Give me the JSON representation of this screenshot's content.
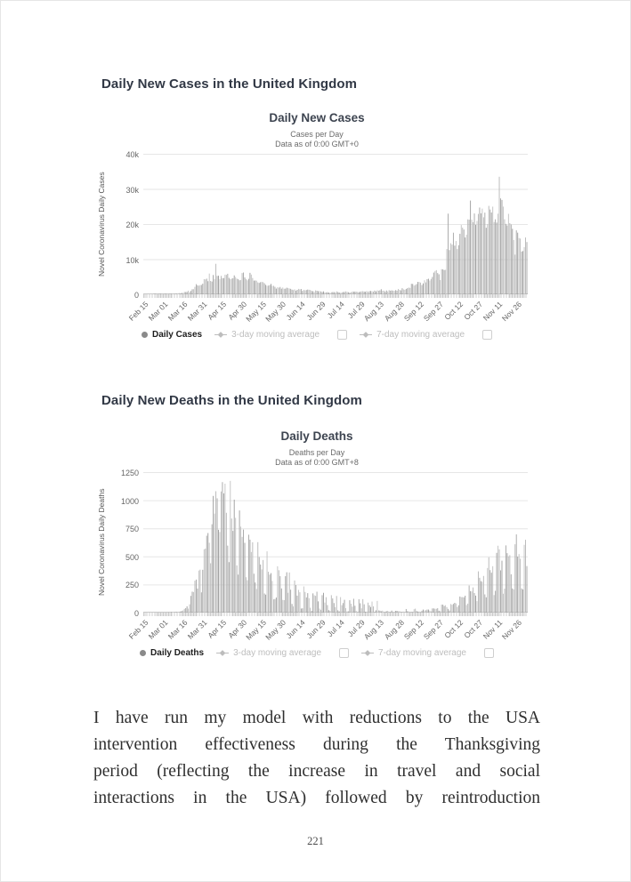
{
  "headings": {
    "cases": "Daily New Cases in the United Kingdom",
    "deaths": "Daily New Deaths in the United Kingdom"
  },
  "colors": {
    "bar_shades": [
      "#a8a8a8",
      "#b9b9b9",
      "#c4c4c4",
      "#9f9f9f"
    ],
    "grid": "#e6e6e6",
    "axis": "#c8c8c8",
    "title": "#3d4450",
    "muted_text": "#666666",
    "legend_inactive": "#bdbdbd"
  },
  "chart_data": [
    {
      "type": "bar",
      "title": "Daily New Cases",
      "subtitle": "Cases per Day",
      "note": "Data as of 0:00 GMT+0",
      "ylabel": "Novel Coronavirus Daily Cases",
      "ylim": [
        0,
        40000
      ],
      "ymax": 40000,
      "ytick_labels": [
        "0",
        "10k",
        "20k",
        "30k",
        "40k"
      ],
      "x_tick_interval_days": 15,
      "x_tick_labels": [
        "Feb 15",
        "Mar 01",
        "Mar 16",
        "Mar 31",
        "Apr 15",
        "Apr 30",
        "May 15",
        "May 30",
        "Jun 14",
        "Jun 29",
        "Jul 14",
        "Jul 29",
        "Aug 13",
        "Aug 28",
        "Sep 12",
        "Sep 27",
        "Oct 12",
        "Oct 27",
        "Nov 11",
        "Nov 26"
      ],
      "legend": [
        {
          "label": "Daily Cases",
          "active": true,
          "checkbox": false
        },
        {
          "label": "3-day moving average",
          "active": false,
          "checkbox": true
        },
        {
          "label": "7-day moving average",
          "active": false,
          "checkbox": true
        }
      ],
      "values": [
        0,
        0,
        0,
        0,
        0,
        0,
        0,
        0,
        4,
        2,
        3,
        2,
        3,
        7,
        13,
        12,
        11,
        34,
        30,
        48,
        45,
        65,
        52,
        83,
        134,
        130,
        208,
        342,
        251,
        407,
        330,
        676,
        643,
        714,
        1035,
        665,
        967,
        1427,
        1452,
        2129,
        2885,
        2546,
        2433,
        2619,
        2665,
        3009,
        4324,
        4244,
        4450,
        3735,
        5903,
        3802,
        3634,
        5491,
        4344,
        8681,
        5234,
        5288,
        4342,
        5252,
        4603,
        4617,
        5599,
        5525,
        5850,
        4676,
        4301,
        4451,
        4583,
        5386,
        4913,
        4463,
        4310,
        3996,
        4076,
        6032,
        6201,
        4806,
        4339,
        3985,
        4406,
        6111,
        5614,
        4649,
        3896,
        3923,
        3877,
        3403,
        3242,
        3446,
        3560,
        3451,
        3142,
        2684,
        2412,
        2472,
        2615,
        2959,
        2405,
        2409,
        2121,
        1625,
        2004,
        1887,
        2095,
        1604,
        1936,
        1570,
        1613,
        1871,
        1805,
        1650,
        1557,
        1326,
        1205,
        1387,
        1003,
        1266,
        1541,
        1425,
        1514,
        968,
        1279,
        1115,
        1218,
        1346,
        1295,
        1221,
        958,
        874,
        653,
        1118,
        1006,
        890,
        901,
        815,
        689,
        829,
        576,
        544,
        624,
        516,
        352,
        581,
        630,
        642,
        512,
        820,
        650,
        530,
        398,
        538,
        642,
        687,
        827,
        726,
        580,
        445,
        560,
        769,
        767,
        768,
        747,
        685,
        581,
        763,
        846,
        880,
        771,
        743,
        938,
        670,
        892,
        950,
        871,
        758,
        1062,
        816,
        1148,
        1009,
        1129,
        1441,
        1012,
        1040,
        713,
        1089,
        812,
        1182,
        1033,
        1108,
        1041,
        972,
        1184,
        1048,
        1522,
        1276,
        1108,
        1715,
        1406,
        1295,
        1508,
        1735,
        1940,
        1813,
        2988,
        2948,
        2460,
        2659,
        2919,
        3539,
        3497,
        3330,
        2621,
        3105,
        3991,
        3395,
        4322,
        4422,
        3899,
        4368,
        4926,
        6178,
        6634,
        6874,
        6042,
        5693,
        4044,
        7143,
        7108,
        6914,
        6968,
        12872,
        22961,
        12594,
        14542,
        14162,
        17540,
        13864,
        15165,
        12872,
        13972,
        17234,
        19724,
        18980,
        18447,
        16171,
        16982,
        21331,
        21242,
        26688,
        21242,
        20530,
        23012,
        19790,
        20890,
        22885,
        24701,
        23065,
        24405,
        21915,
        23254,
        18950,
        20018,
        25177,
        24141,
        23287,
        24957,
        20572,
        21350,
        20412,
        22950,
        33470,
        27301,
        26860,
        24962,
        21363,
        20051,
        19609,
        22915,
        20252,
        19875,
        18662,
        15450,
        11299,
        18213,
        17555,
        16022,
        15871,
        12155,
        12330,
        13430,
        16170,
        14879
      ]
    },
    {
      "type": "bar",
      "title": "Daily Deaths",
      "subtitle": "Deaths per Day",
      "note": "Data as of 0:00 GMT+8",
      "ylabel": "Novel Coronavirus Daily Deaths",
      "ylim": [
        0,
        1250
      ],
      "ymax": 1250,
      "ytick_labels": [
        "0",
        "250",
        "500",
        "750",
        "1000",
        "1250"
      ],
      "x_tick_interval_days": 15,
      "x_tick_labels": [
        "Feb 15",
        "Mar 01",
        "Mar 16",
        "Mar 31",
        "Apr 15",
        "Apr 30",
        "May 15",
        "May 30",
        "Jun 14",
        "Jun 29",
        "Jul 14",
        "Jul 29",
        "Aug 13",
        "Aug 28",
        "Sep 12",
        "Sep 27",
        "Oct 12",
        "Oct 27",
        "Nov 11",
        "Nov 26"
      ],
      "legend": [
        {
          "label": "Daily Deaths",
          "active": true,
          "checkbox": false
        },
        {
          "label": "3-day moving average",
          "active": false,
          "checkbox": true
        },
        {
          "label": "7-day moving average",
          "active": false,
          "checkbox": true
        }
      ],
      "values": [
        0,
        0,
        0,
        0,
        0,
        0,
        0,
        0,
        0,
        0,
        0,
        0,
        0,
        0,
        0,
        0,
        0,
        0,
        0,
        1,
        0,
        1,
        0,
        0,
        1,
        1,
        2,
        2,
        10,
        14,
        20,
        33,
        40,
        56,
        35,
        74,
        149,
        186,
        183,
        284,
        294,
        214,
        374,
        382,
        180,
        381,
        563,
        569,
        684,
        708,
        621,
        439,
        786,
        1038,
        881,
        1080,
        1017,
        737,
        717,
        1078,
        1161,
        1061,
        1147,
        888,
        596,
        449,
        1172,
        837,
        727,
        1005,
        843,
        420,
        338,
        909,
        765,
        674,
        739,
        621,
        315,
        288,
        693,
        649,
        539,
        626,
        346,
        268,
        210,
        627,
        494,
        428,
        384,
        468,
        170,
        160,
        545,
        363,
        338,
        351,
        282,
        118,
        121,
        134,
        412,
        377,
        324,
        215,
        113,
        111,
        324,
        359,
        176,
        357,
        204,
        77,
        55,
        286,
        245,
        151,
        202,
        181,
        36,
        38,
        233,
        184,
        135,
        173,
        128,
        43,
        15,
        171,
        154,
        149,
        186,
        100,
        36,
        25,
        155,
        176,
        89,
        137,
        67,
        22,
        16,
        155,
        126,
        85,
        48,
        148,
        21,
        11,
        138,
        66,
        85,
        114,
        40,
        11,
        11,
        110,
        79,
        53,
        123,
        61,
        14,
        7,
        119,
        83,
        38,
        120,
        74,
        8,
        9,
        89,
        65,
        50,
        98,
        55,
        8,
        21,
        104,
        20,
        18,
        12,
        18,
        5,
        4,
        12,
        16,
        6,
        2,
        18,
        1,
        4,
        16,
        16,
        12,
        12,
        1,
        1,
        9,
        3,
        32,
        13,
        10,
        8,
        3,
        3,
        30,
        35,
        14,
        9,
        9,
        5,
        17,
        27,
        20,
        21,
        27,
        27,
        18,
        11,
        37,
        37,
        34,
        34,
        39,
        17,
        13,
        71,
        71,
        59,
        66,
        49,
        33,
        19,
        76,
        70,
        77,
        87,
        81,
        50,
        65,
        143,
        137,
        138,
        136,
        150,
        67,
        80,
        241,
        191,
        189,
        224,
        174,
        151,
        102,
        367,
        310,
        280,
        274,
        326,
        162,
        136,
        397,
        492,
        378,
        355,
        413,
        156,
        194,
        532,
        595,
        563,
        376,
        462,
        168,
        213,
        598,
        529,
        501,
        511,
        341,
        215,
        206,
        608,
        696,
        498,
        521,
        479,
        215,
        206,
        603,
        648,
        414
      ]
    }
  ],
  "paragraph_lines": [
    "I have run my model with reductions to the USA",
    "intervention effectiveness during the Thanksgiving",
    "period (reflecting the increase in travel and social",
    "interactions in the USA) followed by reintroduction"
  ],
  "page": {
    "number": "221"
  }
}
